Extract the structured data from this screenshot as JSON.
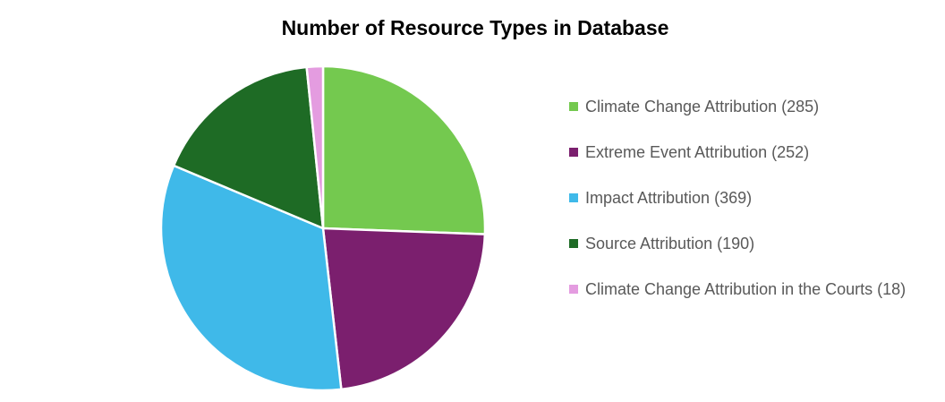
{
  "chart_data": {
    "type": "pie",
    "title": "Number of Resource Types in Database",
    "categories": [
      "Climate Change Attribution (285)",
      "Extreme Event Attribution (252)",
      "Impact Attribution (369)",
      "Source Attribution (190)",
      "Climate Change Attribution in the Courts (18)"
    ],
    "values": [
      285,
      252,
      369,
      190,
      18
    ],
    "colors": [
      "#74c94f",
      "#7b1f6e",
      "#3fb9e9",
      "#1e6b25",
      "#e49ce0"
    ],
    "legend": "right"
  }
}
